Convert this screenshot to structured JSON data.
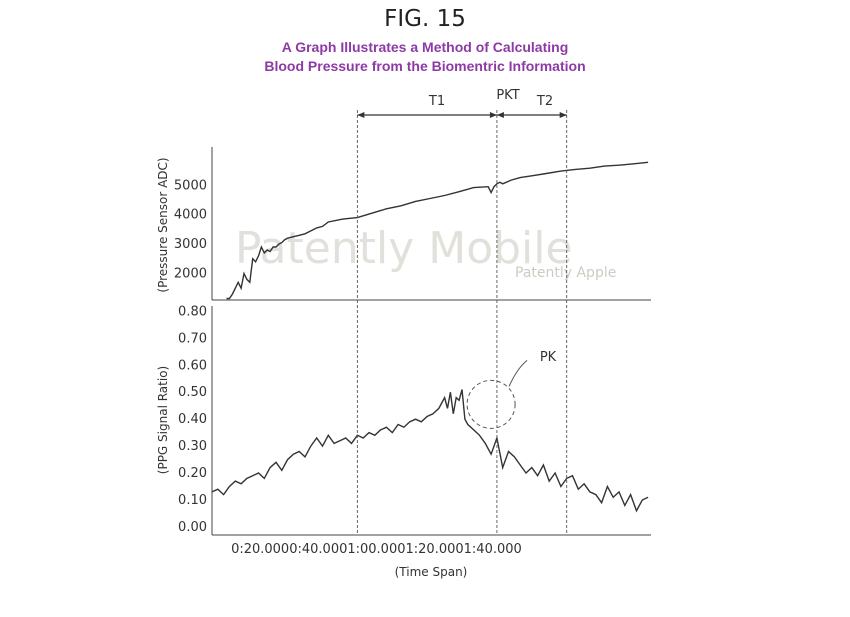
{
  "figure_label": "FIG. 15",
  "subtitle_line1": "A Graph Illustrates a Method of Calculating",
  "subtitle_line2": "Blood Pressure from the Biomentric Information",
  "watermark": {
    "main": "Patently Mobile",
    "sub": "Patently Apple"
  },
  "colors": {
    "subtitle": "#8e3aa6",
    "line": "#333333",
    "watermark": "#d9d6cf"
  },
  "chart_data": [
    {
      "type": "line",
      "ylabel": "(Pressure Sensor ADC)",
      "xlabel": "",
      "yticks": [
        "5000",
        "4000",
        "3000",
        "2000"
      ],
      "ylim": [
        1100,
        6300
      ],
      "xlim": [
        0,
        151
      ],
      "series": [
        {
          "x": [
            5,
            6,
            7,
            8,
            9,
            10,
            11,
            12,
            13,
            14,
            15,
            16,
            17,
            18,
            19,
            20,
            21,
            22,
            23,
            24,
            25,
            26,
            28,
            30,
            32,
            34,
            36,
            38,
            40,
            45,
            50,
            55,
            60,
            65,
            70,
            75,
            80,
            85,
            90,
            95,
            96,
            97,
            98,
            99,
            100,
            103,
            106,
            110,
            115,
            120,
            125,
            130,
            135,
            140,
            145,
            150
          ],
          "y": [
            1150,
            1150,
            1300,
            1500,
            1700,
            1500,
            2000,
            1800,
            1700,
            2500,
            2400,
            2600,
            2900,
            2700,
            2800,
            2750,
            2900,
            2900,
            3000,
            3050,
            3150,
            3200,
            3250,
            3300,
            3350,
            3450,
            3550,
            3600,
            3750,
            3850,
            3900,
            4050,
            4200,
            4300,
            4450,
            4550,
            4650,
            4780,
            4920,
            4950,
            4750,
            4950,
            5050,
            5100,
            5050,
            5180,
            5260,
            5320,
            5400,
            5480,
            5540,
            5580,
            5650,
            5680,
            5730,
            5780
          ]
        }
      ]
    },
    {
      "type": "line",
      "ylabel": "(PPG Signal Ratio)",
      "xlabel": "(Time Span)",
      "yticks": [
        "0.80",
        "0.70",
        "0.60",
        "0.50",
        "0.40",
        "0.30",
        "0.20",
        "0.10",
        "0.00"
      ],
      "xticks": [
        "0:20.000",
        "0:40.000",
        "1:00.000",
        "1:20.000",
        "1:40.000"
      ],
      "xtick_values": [
        20,
        40,
        60,
        80,
        100
      ],
      "ylim": [
        -0.03,
        0.82
      ],
      "xlim": [
        0,
        151
      ],
      "series": [
        {
          "x": [
            0,
            2,
            4,
            6,
            8,
            10,
            12,
            14,
            16,
            18,
            20,
            22,
            24,
            26,
            28,
            30,
            32,
            34,
            36,
            38,
            40,
            42,
            44,
            46,
            48,
            50,
            52,
            54,
            56,
            58,
            60,
            62,
            64,
            66,
            68,
            70,
            72,
            74,
            76,
            78,
            79,
            80,
            81,
            82,
            83,
            84,
            85,
            86,
            87,
            88,
            90,
            92,
            94,
            96,
            98,
            100,
            102,
            104,
            106,
            108,
            110,
            112,
            114,
            116,
            118,
            120,
            122,
            124,
            126,
            128,
            130,
            132,
            134,
            136,
            138,
            140,
            142,
            144,
            146,
            148,
            150
          ],
          "y": [
            0.13,
            0.14,
            0.12,
            0.15,
            0.17,
            0.16,
            0.18,
            0.19,
            0.2,
            0.18,
            0.22,
            0.24,
            0.21,
            0.25,
            0.27,
            0.28,
            0.26,
            0.3,
            0.33,
            0.3,
            0.34,
            0.31,
            0.32,
            0.33,
            0.31,
            0.34,
            0.33,
            0.35,
            0.34,
            0.36,
            0.37,
            0.35,
            0.38,
            0.37,
            0.39,
            0.4,
            0.39,
            0.41,
            0.42,
            0.44,
            0.46,
            0.48,
            0.44,
            0.5,
            0.42,
            0.48,
            0.47,
            0.51,
            0.4,
            0.38,
            0.36,
            0.34,
            0.31,
            0.27,
            0.33,
            0.22,
            0.28,
            0.26,
            0.23,
            0.2,
            0.22,
            0.19,
            0.23,
            0.17,
            0.2,
            0.15,
            0.18,
            0.19,
            0.14,
            0.16,
            0.13,
            0.12,
            0.09,
            0.15,
            0.11,
            0.13,
            0.08,
            0.12,
            0.06,
            0.1,
            0.11
          ]
        }
      ]
    }
  ],
  "annotations": {
    "t1": "T1",
    "pkt": "PKT",
    "t2": "T2",
    "pk": "PK",
    "vlines_x": [
      50,
      98,
      122
    ],
    "pk_center": [
      96,
      0.44
    ]
  }
}
